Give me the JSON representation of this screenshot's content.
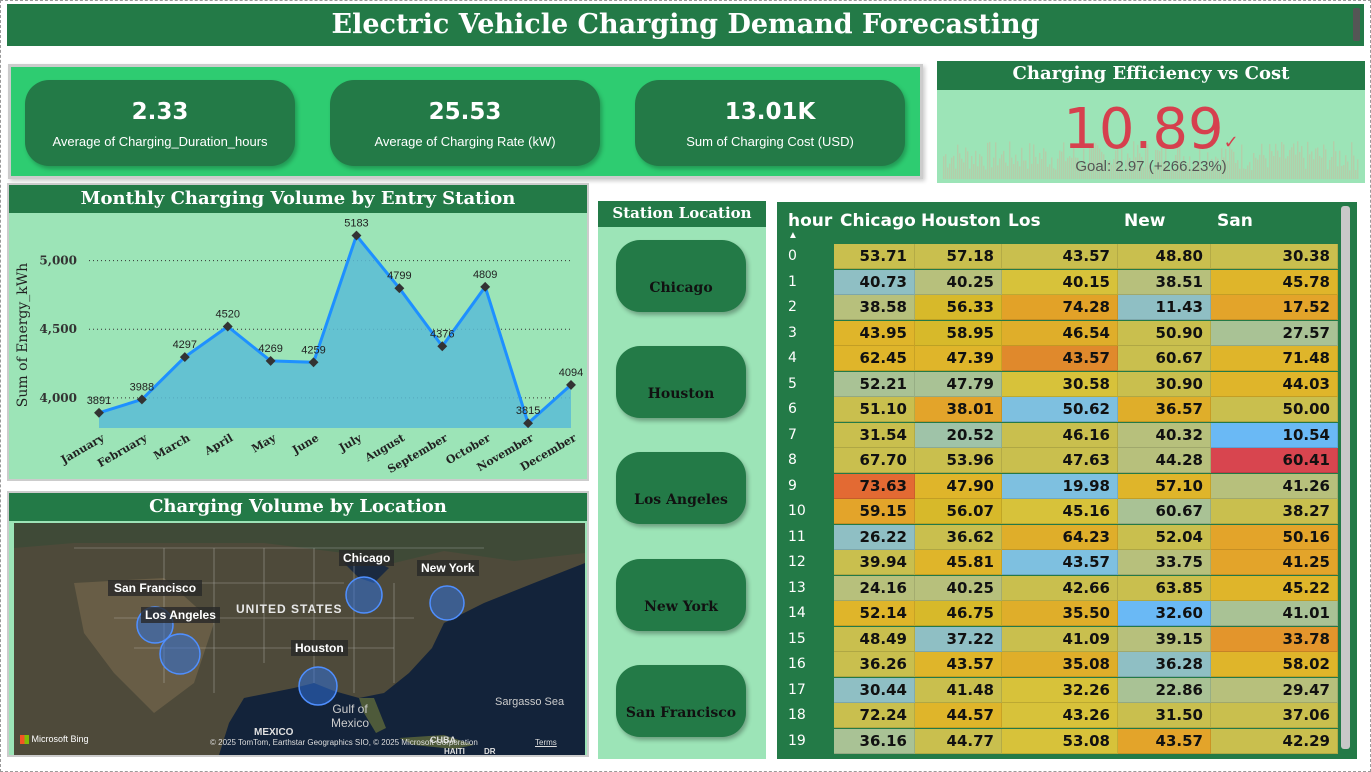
{
  "title": "Electric Vehicle Charging Demand Forecasting",
  "kpis": [
    {
      "value": "2.33",
      "label": "Average of Charging_Duration_hours"
    },
    {
      "value": "25.53",
      "label": "Average of Charging Rate (kW)"
    },
    {
      "value": "13.01K",
      "label": "Sum of Charging Cost (USD)"
    }
  ],
  "gauge": {
    "title": "Charging Efficiency vs Cost",
    "value": "10.89",
    "goal": "Goal: 2.97 (+266.23%)",
    "value_color": "#d6404e"
  },
  "line_chart": {
    "title": "Monthly Charging Volume by Entry Station"
  },
  "chart_data": {
    "type": "area",
    "title": "Monthly Charging Volume by Entry Station",
    "xlabel": "",
    "ylabel": "Sum of Energy_kWh",
    "categories": [
      "January",
      "February",
      "March",
      "April",
      "May",
      "June",
      "July",
      "August",
      "September",
      "October",
      "November",
      "December"
    ],
    "values": [
      3891,
      3988,
      4297,
      4520,
      4269,
      4259,
      5183,
      4799,
      4376,
      4809,
      3815,
      4094
    ],
    "yticks": [
      "4,000",
      "4,500",
      "5,000"
    ],
    "ylim": [
      3780,
      5260
    ],
    "line_color": "#1e90ff",
    "fill_color": "#5bbcd6"
  },
  "map": {
    "title": "Charging Volume by Location",
    "labels": {
      "chicago": "Chicago",
      "new_york": "New York",
      "san_francisco": "San Francisco",
      "los_angeles": "Los Angeles",
      "houston": "Houston",
      "country": "UNITED STATES",
      "gulf": "Gulf of\nMexico",
      "sargasso": "Sargasso Sea",
      "mexico": "MEXICO",
      "cuba": "CUBA",
      "haiti": "HAITI",
      "dr": "DR"
    },
    "attribution": "© 2025 TomTom, Earthstar Geographics SIO, © 2025 Microsoft Corporation",
    "terms": "Terms",
    "brand": "Microsoft Bing"
  },
  "slicer": {
    "title": "Station Location",
    "items": [
      "Chicago",
      "Houston",
      "Los Angeles",
      "New York",
      "San Francisco"
    ]
  },
  "matrix": {
    "headers": [
      "hour",
      "Chicago",
      "Houston",
      "Los Angeles",
      "New York",
      "San Francisco"
    ],
    "rows": [
      {
        "hour": "0",
        "values": [
          "53.71",
          "57.18",
          "43.57",
          "48.80",
          "30.38"
        ]
      },
      {
        "hour": "1",
        "values": [
          "40.73",
          "40.25",
          "40.15",
          "38.51",
          "45.78"
        ]
      },
      {
        "hour": "2",
        "values": [
          "38.58",
          "56.33",
          "74.28",
          "11.43",
          "17.52"
        ]
      },
      {
        "hour": "3",
        "values": [
          "43.95",
          "58.95",
          "46.54",
          "50.90",
          "27.57"
        ]
      },
      {
        "hour": "4",
        "values": [
          "62.45",
          "47.39",
          "43.57",
          "60.67",
          "71.48"
        ]
      },
      {
        "hour": "5",
        "values": [
          "52.21",
          "47.79",
          "30.58",
          "30.90",
          "44.03"
        ]
      },
      {
        "hour": "6",
        "values": [
          "51.10",
          "38.01",
          "50.62",
          "36.57",
          "50.00"
        ]
      },
      {
        "hour": "7",
        "values": [
          "31.54",
          "20.52",
          "46.16",
          "40.32",
          "10.54"
        ]
      },
      {
        "hour": "8",
        "values": [
          "67.70",
          "53.96",
          "47.63",
          "44.28",
          "60.41"
        ]
      },
      {
        "hour": "9",
        "values": [
          "73.63",
          "47.90",
          "19.98",
          "57.10",
          "41.26"
        ]
      },
      {
        "hour": "10",
        "values": [
          "59.15",
          "56.07",
          "45.16",
          "60.67",
          "38.27"
        ]
      },
      {
        "hour": "11",
        "values": [
          "26.22",
          "36.62",
          "64.23",
          "52.04",
          "50.16"
        ]
      },
      {
        "hour": "12",
        "values": [
          "39.94",
          "45.81",
          "43.57",
          "33.75",
          "41.25"
        ]
      },
      {
        "hour": "13",
        "values": [
          "24.16",
          "40.25",
          "42.66",
          "63.85",
          "45.22"
        ]
      },
      {
        "hour": "14",
        "values": [
          "52.14",
          "46.75",
          "35.50",
          "32.60",
          "41.01"
        ]
      },
      {
        "hour": "15",
        "values": [
          "48.49",
          "37.22",
          "41.09",
          "39.15",
          "33.78"
        ]
      },
      {
        "hour": "16",
        "values": [
          "36.26",
          "43.57",
          "35.08",
          "36.28",
          "58.02"
        ]
      },
      {
        "hour": "17",
        "values": [
          "30.44",
          "41.48",
          "32.26",
          "22.86",
          "29.47"
        ]
      },
      {
        "hour": "18",
        "values": [
          "72.24",
          "44.57",
          "43.26",
          "31.50",
          "37.06"
        ]
      },
      {
        "hour": "19",
        "values": [
          "36.16",
          "44.77",
          "53.08",
          "43.57",
          "42.29"
        ]
      }
    ],
    "colors": [
      [
        "#c9bf4e",
        "#c9bf4e",
        "#c9bf4e",
        "#c9bf4e",
        "#c9bf4e"
      ],
      [
        "#8fbfc4",
        "#b7c07c",
        "#d7c23a",
        "#b7c07c",
        "#dfb52a"
      ],
      [
        "#b7c07c",
        "#d7b92a",
        "#e2a228",
        "#8fbfc4",
        "#e3a42a"
      ],
      [
        "#dfb52a",
        "#d7b92a",
        "#dfae2a",
        "#c9bf4e",
        "#a9c295"
      ],
      [
        "#dfb52a",
        "#dfb52a",
        "#e0892c",
        "#c9bf4e",
        "#dfb52a"
      ],
      [
        "#a9c295",
        "#a9c295",
        "#d7c23a",
        "#c9bf4e",
        "#dfb52a"
      ],
      [
        "#c9bf4e",
        "#e3a42a",
        "#7ec0e0",
        "#dfae2a",
        "#c9bf4e"
      ],
      [
        "#c9bf4e",
        "#9fc3a8",
        "#c9bf4e",
        "#b7c07c",
        "#6ab9f5"
      ],
      [
        "#c9bf4e",
        "#c9bf4e",
        "#c9bf4e",
        "#b7c07c",
        "#d8454f"
      ],
      [
        "#e36a33",
        "#dfb52a",
        "#7ec0e0",
        "#dfb52a",
        "#b7c07c"
      ],
      [
        "#e3a42a",
        "#d7b92a",
        "#d7c23a",
        "#a9c295",
        "#c9bf4e"
      ],
      [
        "#8fbfc4",
        "#c9bf4e",
        "#dfae2a",
        "#c9bf4e",
        "#e3a42a"
      ],
      [
        "#c9bf4e",
        "#dfb52a",
        "#7ec0e0",
        "#b7c07c",
        "#e3a42a"
      ],
      [
        "#b7c07c",
        "#b7c07c",
        "#c9bf4e",
        "#c9bf4e",
        "#dfb52a"
      ],
      [
        "#dfb52a",
        "#d7b92a",
        "#dfae2a",
        "#6ab9f5",
        "#a9c295"
      ],
      [
        "#c9bf4e",
        "#8fbfc4",
        "#c9bf4e",
        "#b7c07c",
        "#e3952c"
      ],
      [
        "#c9bf4e",
        "#dfb52a",
        "#dfae2a",
        "#8fbfc4",
        "#dfb52a"
      ],
      [
        "#8fbfc4",
        "#c9bf4e",
        "#d7c23a",
        "#a9c295",
        "#b7c07c"
      ],
      [
        "#c9bf4e",
        "#dfb52a",
        "#d7c23a",
        "#c9bf4e",
        "#c9bf4e"
      ],
      [
        "#a9c295",
        "#c9bf4e",
        "#d7c23a",
        "#e3a42a",
        "#c9bf4e"
      ]
    ]
  }
}
